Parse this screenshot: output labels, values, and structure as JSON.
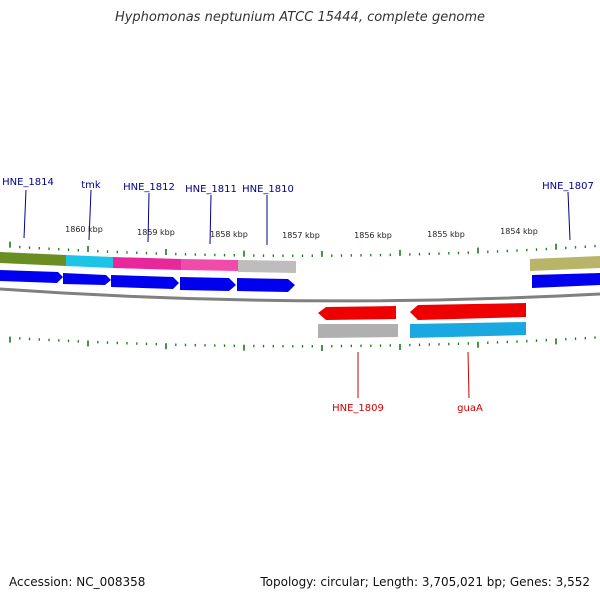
{
  "title": "Hyphomonas neptunium ATCC 15444, complete genome",
  "footer": {
    "accession": "Accession: NC_008358",
    "summary": "Topology: circular; Length: 3,705,021 bp; Genes: 3,552"
  },
  "colors": {
    "forward_label": "#00008b",
    "reverse_label": "#cc0000",
    "cds_forward": "#0000ee",
    "cds_reverse": "#ee0000",
    "tick": "#1a7a1a",
    "backbone": "#808080"
  },
  "scale_labels": [
    "1860 kbp",
    "1859 kbp",
    "1858 kbp",
    "1857 kbp",
    "1856 kbp",
    "1855 kbp",
    "1854 kbp"
  ],
  "forward_genes": [
    "HNE_1814",
    "tmk",
    "HNE_1812",
    "HNE_1811",
    "HNE_1810",
    "HNE_1807"
  ],
  "reverse_genes": [
    "HNE_1809",
    "guaA"
  ]
}
